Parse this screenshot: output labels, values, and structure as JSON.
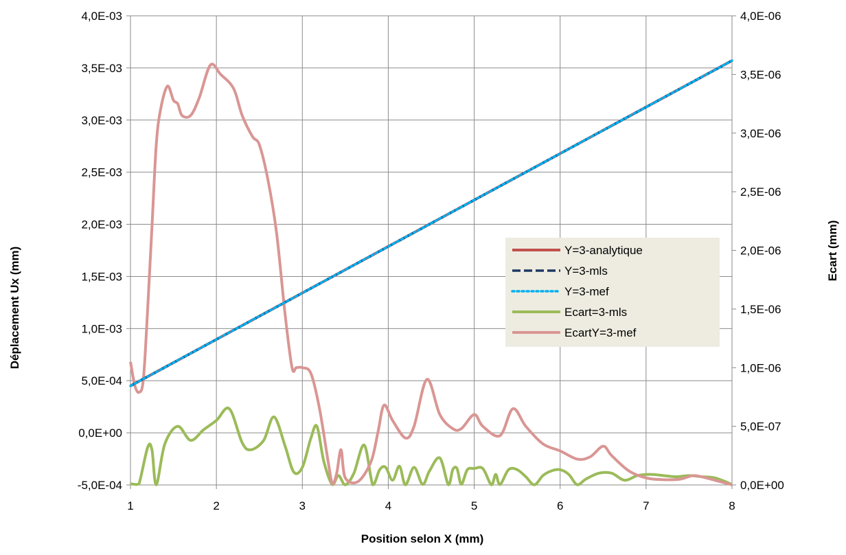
{
  "chart_data": {
    "type": "line",
    "title": "",
    "xlabel": "Position selon X (mm)",
    "ylabel": "Déplacement Ux (mm)",
    "y2label": "Ecart (mm)",
    "xlim": [
      1,
      8
    ],
    "ylim": [
      -0.0005,
      0.004
    ],
    "y2lim": [
      0,
      4e-06
    ],
    "grid": true,
    "legend_position": "right",
    "x_ticks": [
      "1",
      "2",
      "3",
      "4",
      "5",
      "6",
      "7",
      "8"
    ],
    "y_ticks": [
      "-5,0E-04",
      "0,0E+00",
      "5,0E-04",
      "1,0E-03",
      "1,5E-03",
      "2,0E-03",
      "2,5E-03",
      "3,0E-03",
      "3,5E-03",
      "4,0E-03"
    ],
    "y2_ticks": [
      "0,0E+00",
      "5,0E-07",
      "1,0E-06",
      "1,5E-06",
      "2,0E-06",
      "2,5E-06",
      "3,0E-06",
      "3,5E-06",
      "4,0E-06"
    ],
    "series": [
      {
        "name": "Y=3-analytique",
        "axis": "left",
        "color": "#c0504d",
        "dash": "solid",
        "x": [
          1,
          8
        ],
        "y": [
          0.00045,
          0.00357
        ]
      },
      {
        "name": "Y=3-mls",
        "axis": "left",
        "color": "#1f3864",
        "dash": "dash",
        "x": [
          1,
          8
        ],
        "y": [
          0.00045,
          0.00357
        ]
      },
      {
        "name": "Y=3-mef",
        "axis": "left",
        "color": "#00b0f0",
        "dash": "dot",
        "x": [
          1,
          8
        ],
        "y": [
          0.00045,
          0.00357
        ]
      },
      {
        "name": "Ecart=3-mls",
        "axis": "right",
        "color": "#9bbb59",
        "dash": "solid",
        "x": [
          1,
          1.05,
          1.1,
          1.2,
          1.25,
          1.3,
          1.4,
          1.55,
          1.7,
          1.85,
          2.0,
          2.15,
          2.3,
          2.4,
          2.55,
          2.67,
          2.8,
          2.9,
          3.0,
          3.1,
          3.17,
          3.25,
          3.35,
          3.42,
          3.5,
          3.6,
          3.72,
          3.82,
          3.9,
          3.97,
          4.05,
          4.13,
          4.2,
          4.3,
          4.4,
          4.48,
          4.6,
          4.7,
          4.75,
          4.8,
          4.85,
          4.92,
          5.0,
          5.1,
          5.2,
          5.25,
          5.3,
          5.4,
          5.5,
          5.6,
          5.7,
          5.8,
          5.9,
          6.0,
          6.1,
          6.2,
          6.3,
          6.45,
          6.6,
          6.75,
          6.9,
          7.05,
          7.2,
          7.35,
          7.5,
          7.65,
          7.8,
          8.0
        ],
        "y": [
          1e-08,
          5e-09,
          1e-08,
          3.2e-07,
          3e-07,
          1e-09,
          3.5e-07,
          5e-07,
          3.8e-07,
          4.7e-07,
          5.5e-07,
          6.5e-07,
          3.6e-07,
          3e-07,
          3.8e-07,
          5.8e-07,
          3.3e-07,
          1.1e-07,
          1.5e-07,
          4e-07,
          5e-07,
          2e-07,
          2e-09,
          8e-08,
          1e-09,
          1e-07,
          3.4e-07,
          1e-09,
          1.3e-07,
          1.5e-07,
          4e-08,
          1.6e-07,
          1e-09,
          1.5e-07,
          5e-09,
          1.2e-07,
          2.3e-07,
          1e-09,
          1.3e-07,
          1.4e-07,
          5e-09,
          1.3e-07,
          1.4e-07,
          1.4e-07,
          1e-09,
          9e-08,
          3e-09,
          1.3e-07,
          1.3e-07,
          7e-08,
          1e-09,
          8e-08,
          1.2e-07,
          1.3e-07,
          9e-08,
          1e-09,
          5e-08,
          1e-07,
          1e-07,
          4e-08,
          8e-08,
          9e-08,
          8e-08,
          7e-08,
          8e-08,
          7e-08,
          6e-08,
          5e-09
        ]
      },
      {
        "name": "EcartY=3-mef",
        "axis": "right",
        "color": "#d99694",
        "dash": "solid",
        "x": [
          1,
          1.05,
          1.1,
          1.15,
          1.2,
          1.25,
          1.3,
          1.35,
          1.43,
          1.5,
          1.55,
          1.6,
          1.7,
          1.8,
          1.93,
          2.05,
          2.2,
          2.3,
          2.42,
          2.5,
          2.6,
          2.7,
          2.8,
          2.88,
          2.93,
          3.0,
          3.1,
          3.2,
          3.3,
          3.35,
          3.4,
          3.45,
          3.5,
          3.65,
          3.8,
          3.88,
          3.95,
          4.05,
          4.2,
          4.3,
          4.45,
          4.6,
          4.75,
          4.85,
          5.0,
          5.1,
          5.3,
          5.45,
          5.6,
          5.8,
          6.0,
          6.2,
          6.35,
          6.5,
          6.6,
          6.8,
          7.0,
          7.2,
          7.4,
          7.55,
          7.7,
          7.85,
          8.0
        ],
        "y": [
          1.05e-06,
          8.5e-07,
          7.9e-07,
          9e-07,
          1.5e-06,
          2.2e-06,
          2.9e-06,
          3.2e-06,
          3.4e-06,
          3.28e-06,
          3.25e-06,
          3.15e-06,
          3.15e-06,
          3.3e-06,
          3.58e-06,
          3.5e-06,
          3.38e-06,
          3.15e-06,
          2.97e-06,
          2.9e-06,
          2.6e-06,
          2.15e-06,
          1.45e-06,
          1e-06,
          1e-06,
          1e-06,
          9.5e-07,
          6.5e-07,
          2e-07,
          1e-08,
          1e-07,
          3e-07,
          6e-08,
          3e-08,
          2e-07,
          4.5e-07,
          6.8e-07,
          5.5e-07,
          4e-07,
          5e-07,
          9e-07,
          6e-07,
          4.8e-07,
          4.8e-07,
          6e-07,
          5e-07,
          4.2e-07,
          6.5e-07,
          5e-07,
          3.5e-07,
          2.9e-07,
          2.2e-07,
          2.4e-07,
          3.3e-07,
          2.5e-07,
          1.2e-07,
          6e-08,
          4.5e-08,
          5e-08,
          8e-08,
          6e-08,
          3e-08,
          1e-09
        ]
      }
    ]
  }
}
